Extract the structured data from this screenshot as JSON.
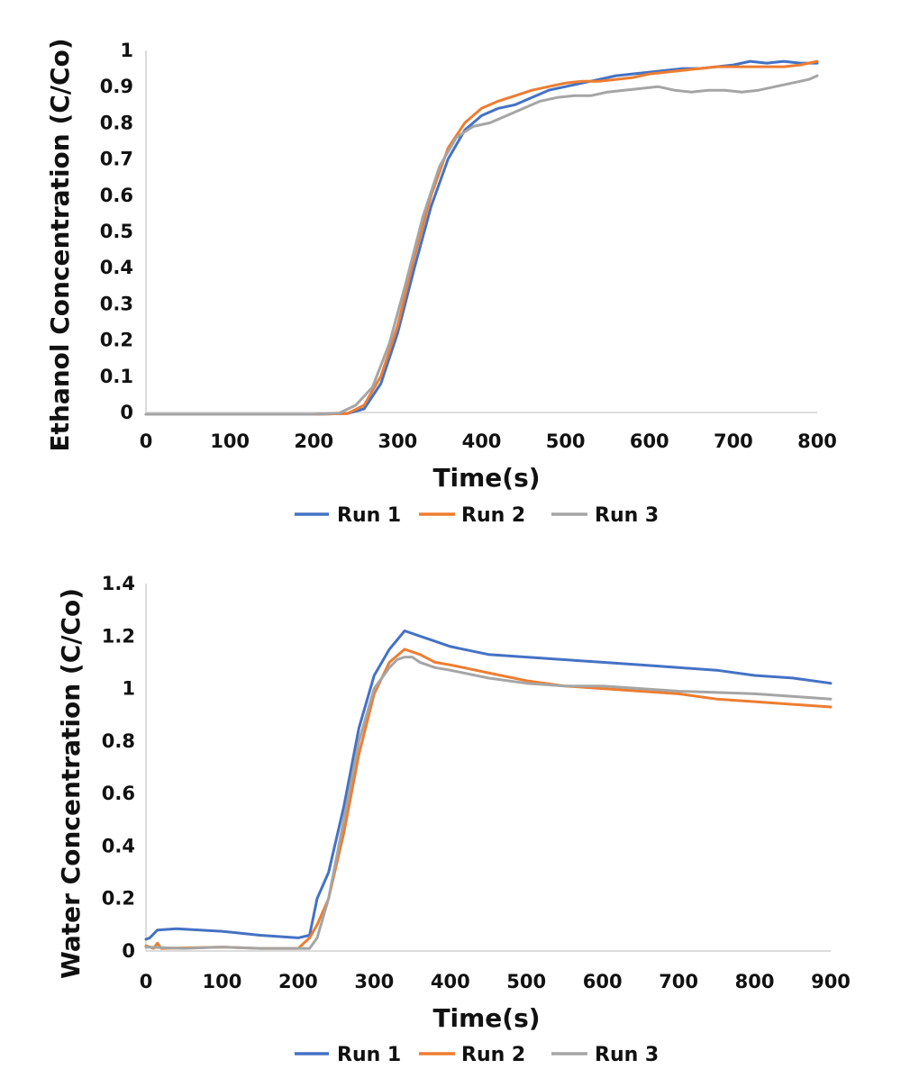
{
  "chart_data": [
    {
      "type": "line",
      "title": "",
      "xlabel": "Time(s)",
      "ylabel": "Ethanol Concentration (C/Co)",
      "xlim": [
        0,
        800
      ],
      "ylim": [
        0,
        1
      ],
      "xticks": [
        0,
        100,
        200,
        300,
        400,
        500,
        600,
        700,
        800
      ],
      "yticks": [
        0,
        0.1,
        0.2,
        0.3,
        0.4,
        0.5,
        0.6,
        0.7,
        0.8,
        0.9,
        1
      ],
      "ytick_labels": [
        "0",
        "0.1",
        "0.2",
        "0.3",
        "0.4",
        "0.5",
        "0.6",
        "0.7",
        "0.8",
        "0.9",
        "1"
      ],
      "xtick_labels": [
        "0",
        "100",
        "200",
        "300",
        "400",
        "500",
        "600",
        "700",
        "800"
      ],
      "grid": false,
      "legend": "bottom",
      "series": [
        {
          "name": "Run 1",
          "color": "#4472C4",
          "x": [
            0,
            100,
            200,
            240,
            260,
            280,
            300,
            320,
            340,
            360,
            380,
            400,
            420,
            440,
            460,
            480,
            500,
            520,
            540,
            560,
            580,
            600,
            620,
            640,
            660,
            680,
            700,
            720,
            740,
            760,
            780,
            800
          ],
          "y": [
            -0.005,
            -0.005,
            -0.005,
            -0.003,
            0.01,
            0.08,
            0.22,
            0.4,
            0.57,
            0.7,
            0.78,
            0.82,
            0.84,
            0.85,
            0.87,
            0.89,
            0.9,
            0.91,
            0.92,
            0.93,
            0.935,
            0.94,
            0.945,
            0.95,
            0.95,
            0.955,
            0.96,
            0.97,
            0.965,
            0.97,
            0.965,
            0.965
          ]
        },
        {
          "name": "Run 2",
          "color": "#ED7D31",
          "x": [
            0,
            100,
            200,
            240,
            260,
            280,
            300,
            320,
            340,
            360,
            380,
            400,
            420,
            440,
            460,
            480,
            500,
            520,
            540,
            560,
            580,
            600,
            620,
            640,
            660,
            680,
            700,
            720,
            740,
            760,
            780,
            800
          ],
          "y": [
            -0.005,
            -0.005,
            -0.005,
            -0.003,
            0.02,
            0.1,
            0.24,
            0.43,
            0.6,
            0.73,
            0.8,
            0.84,
            0.86,
            0.875,
            0.89,
            0.9,
            0.91,
            0.915,
            0.915,
            0.92,
            0.925,
            0.935,
            0.94,
            0.945,
            0.95,
            0.955,
            0.955,
            0.955,
            0.955,
            0.955,
            0.96,
            0.97
          ]
        },
        {
          "name": "Run 3",
          "color": "#A5A5A5",
          "x": [
            0,
            100,
            200,
            230,
            250,
            270,
            290,
            310,
            330,
            350,
            370,
            390,
            410,
            430,
            450,
            470,
            490,
            510,
            530,
            550,
            570,
            590,
            610,
            630,
            650,
            670,
            690,
            710,
            730,
            750,
            770,
            790,
            800
          ],
          "y": [
            -0.005,
            -0.005,
            -0.005,
            -0.002,
            0.02,
            0.07,
            0.19,
            0.36,
            0.54,
            0.68,
            0.76,
            0.79,
            0.8,
            0.82,
            0.84,
            0.86,
            0.87,
            0.875,
            0.875,
            0.885,
            0.89,
            0.895,
            0.9,
            0.89,
            0.885,
            0.89,
            0.89,
            0.885,
            0.89,
            0.9,
            0.91,
            0.92,
            0.93
          ]
        }
      ]
    },
    {
      "type": "line",
      "title": "",
      "xlabel": "Time(s)",
      "ylabel": "Water Concentration (C/Co)",
      "xlim": [
        0,
        900
      ],
      "ylim": [
        0,
        1.4
      ],
      "xticks": [
        0,
        100,
        200,
        300,
        400,
        500,
        600,
        700,
        800,
        900
      ],
      "yticks": [
        0,
        0.2,
        0.4,
        0.6,
        0.8,
        1,
        1.2,
        1.4
      ],
      "ytick_labels": [
        "0",
        "0.2",
        "0.4",
        "0.6",
        "0.8",
        "1",
        "1.2",
        "1.4"
      ],
      "xtick_labels": [
        "0",
        "100",
        "200",
        "300",
        "400",
        "500",
        "600",
        "700",
        "800",
        "900"
      ],
      "grid": false,
      "legend": "bottom",
      "series": [
        {
          "name": "Run 1",
          "color": "#4472C4",
          "x": [
            0,
            5,
            15,
            40,
            100,
            150,
            200,
            215,
            225,
            240,
            260,
            280,
            300,
            320,
            340,
            360,
            380,
            400,
            450,
            500,
            550,
            600,
            650,
            700,
            750,
            800,
            850,
            900
          ],
          "y": [
            0.045,
            0.05,
            0.08,
            0.085,
            0.075,
            0.06,
            0.05,
            0.06,
            0.2,
            0.3,
            0.55,
            0.85,
            1.05,
            1.15,
            1.22,
            1.2,
            1.18,
            1.16,
            1.13,
            1.12,
            1.11,
            1.1,
            1.09,
            1.08,
            1.07,
            1.05,
            1.04,
            1.02
          ]
        },
        {
          "name": "Run 2",
          "color": "#ED7D31",
          "x": [
            0,
            10,
            15,
            20,
            100,
            150,
            200,
            215,
            225,
            240,
            260,
            280,
            300,
            320,
            340,
            360,
            380,
            400,
            450,
            500,
            550,
            600,
            650,
            700,
            750,
            800,
            850,
            900
          ],
          "y": [
            0.02,
            0.01,
            0.03,
            0.01,
            0.015,
            0.01,
            0.01,
            0.05,
            0.1,
            0.2,
            0.45,
            0.75,
            0.98,
            1.1,
            1.15,
            1.13,
            1.1,
            1.09,
            1.06,
            1.03,
            1.01,
            1.0,
            0.99,
            0.98,
            0.96,
            0.95,
            0.94,
            0.93
          ]
        },
        {
          "name": "Run 3",
          "color": "#A5A5A5",
          "x": [
            0,
            50,
            100,
            150,
            200,
            215,
            225,
            240,
            260,
            280,
            300,
            320,
            330,
            340,
            350,
            360,
            380,
            400,
            450,
            500,
            550,
            600,
            650,
            700,
            750,
            800,
            850,
            900
          ],
          "y": [
            0.015,
            0.01,
            0.015,
            0.01,
            0.01,
            0.01,
            0.05,
            0.2,
            0.5,
            0.8,
            1.0,
            1.08,
            1.11,
            1.12,
            1.12,
            1.1,
            1.08,
            1.07,
            1.04,
            1.02,
            1.01,
            1.01,
            1.0,
            0.99,
            0.985,
            0.98,
            0.97,
            0.96
          ]
        }
      ]
    }
  ]
}
